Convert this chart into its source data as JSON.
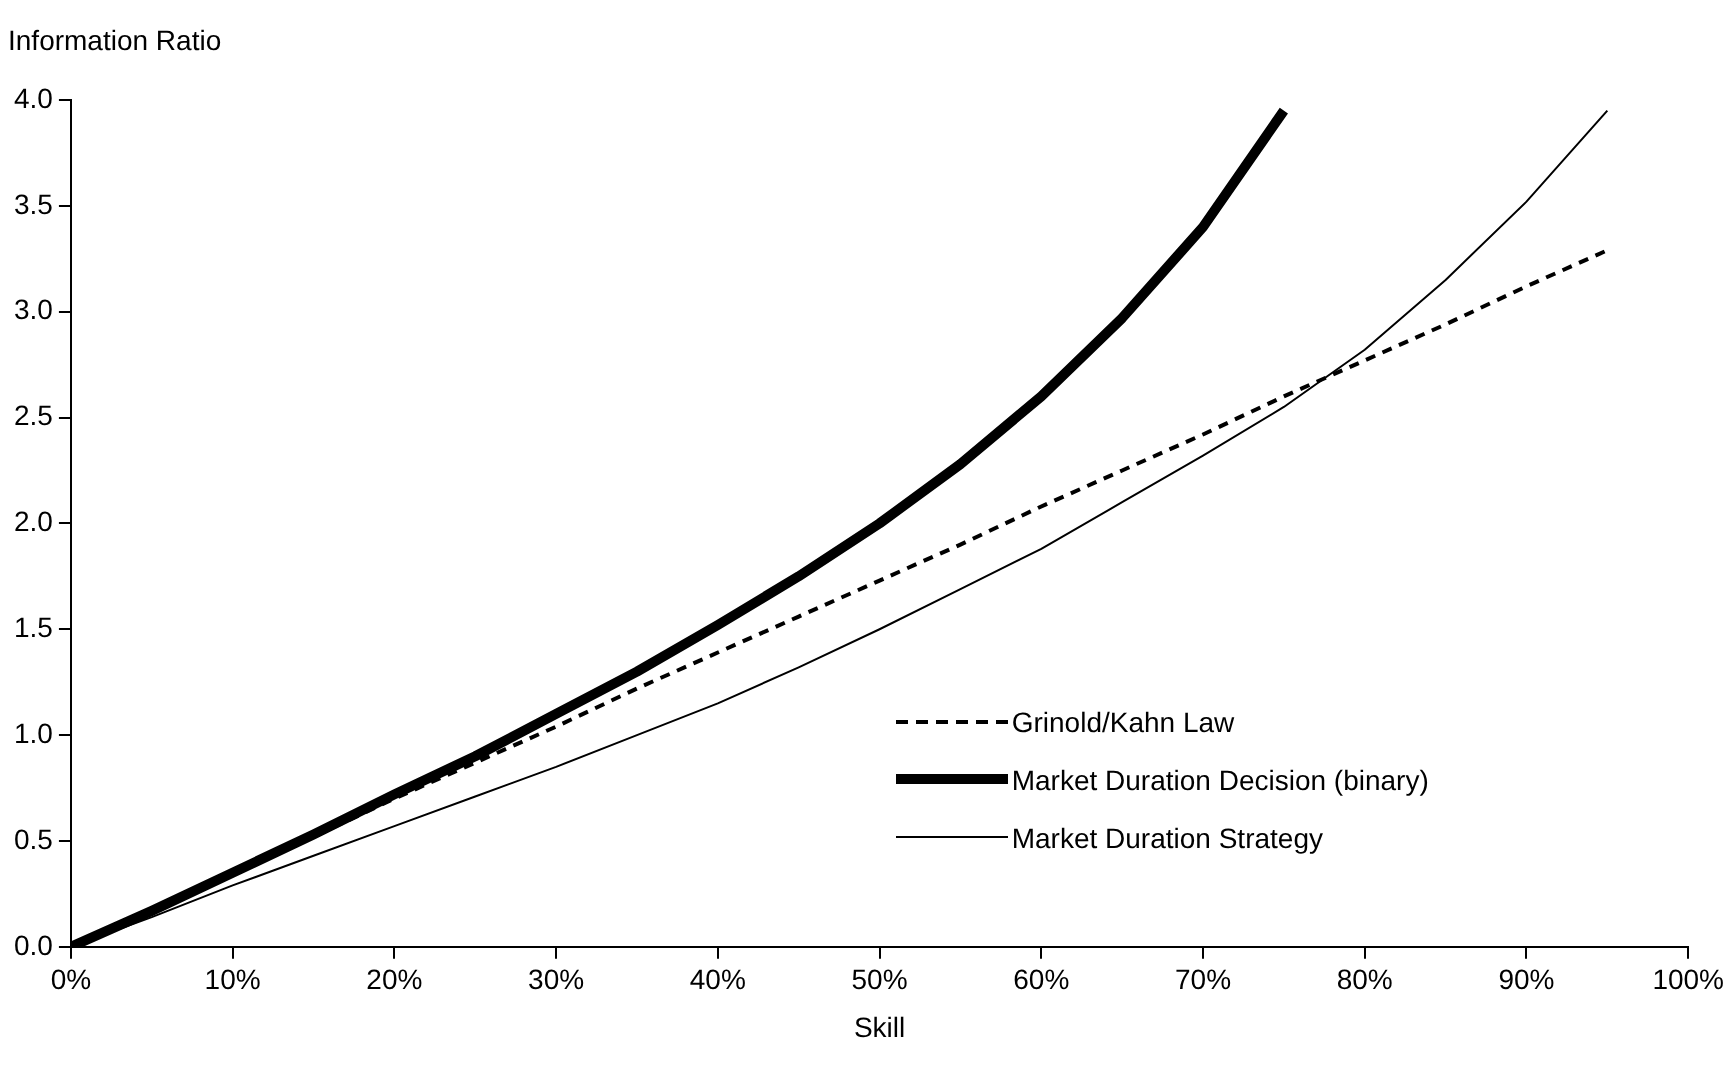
{
  "chart_data": {
    "type": "line",
    "xlabel": "Skill",
    "ylabel": "Information Ratio",
    "xlim": [
      0,
      100
    ],
    "ylim": [
      0,
      4
    ],
    "xticks": [
      {
        "value": 0,
        "label": "0%"
      },
      {
        "value": 10,
        "label": "10%"
      },
      {
        "value": 20,
        "label": "20%"
      },
      {
        "value": 30,
        "label": "30%"
      },
      {
        "value": 40,
        "label": "40%"
      },
      {
        "value": 50,
        "label": "50%"
      },
      {
        "value": 60,
        "label": "60%"
      },
      {
        "value": 70,
        "label": "70%"
      },
      {
        "value": 80,
        "label": "80%"
      },
      {
        "value": 90,
        "label": "90%"
      },
      {
        "value": 100,
        "label": "100%"
      }
    ],
    "yticks": [
      {
        "value": 0,
        "label": "0.0"
      },
      {
        "value": 0.5,
        "label": "0.5"
      },
      {
        "value": 1,
        "label": "1.0"
      },
      {
        "value": 1.5,
        "label": "1.5"
      },
      {
        "value": 2,
        "label": "2.0"
      },
      {
        "value": 2.5,
        "label": "2.5"
      },
      {
        "value": 3,
        "label": "3.0"
      },
      {
        "value": 3.5,
        "label": "3.5"
      },
      {
        "value": 4,
        "label": "4.0"
      }
    ],
    "grid": false,
    "legend": "bottom right",
    "marker": "none",
    "series": [
      {
        "name": "Grinold/Kahn Law",
        "color": "#000000",
        "line_style": "dashed",
        "x": [
          0,
          5,
          10,
          15,
          20,
          25,
          30,
          35,
          40,
          45,
          50,
          55,
          60,
          65,
          70,
          75,
          80,
          85,
          90,
          95
        ],
        "values": [
          0,
          0.17,
          0.35,
          0.52,
          0.7,
          0.87,
          1.04,
          1.22,
          1.39,
          1.56,
          1.73,
          1.9,
          2.08,
          2.25,
          2.42,
          2.6,
          2.77,
          2.94,
          3.12,
          3.29
        ]
      },
      {
        "name": "Market Duration Decision (binary)",
        "color": "#000000",
        "line_style": "solid",
        "x": [
          0,
          5,
          10,
          15,
          20,
          25,
          30,
          35,
          40,
          45,
          50,
          55,
          60,
          65,
          70,
          75
        ],
        "values": [
          0,
          0.17,
          0.35,
          0.53,
          0.72,
          0.9,
          1.1,
          1.3,
          1.52,
          1.75,
          2.0,
          2.28,
          2.6,
          2.97,
          3.4,
          3.95
        ]
      },
      {
        "name": "Market Duration Strategy",
        "color": "#000000",
        "line_style": "solid",
        "x": [
          0,
          5,
          10,
          15,
          20,
          25,
          30,
          35,
          40,
          45,
          50,
          55,
          60,
          65,
          70,
          75,
          80,
          85,
          90,
          95
        ],
        "values": [
          0,
          0.14,
          0.29,
          0.43,
          0.57,
          0.71,
          0.85,
          1.0,
          1.15,
          1.32,
          1.5,
          1.69,
          1.88,
          2.1,
          2.32,
          2.55,
          2.82,
          3.15,
          3.52,
          3.95
        ]
      }
    ]
  }
}
